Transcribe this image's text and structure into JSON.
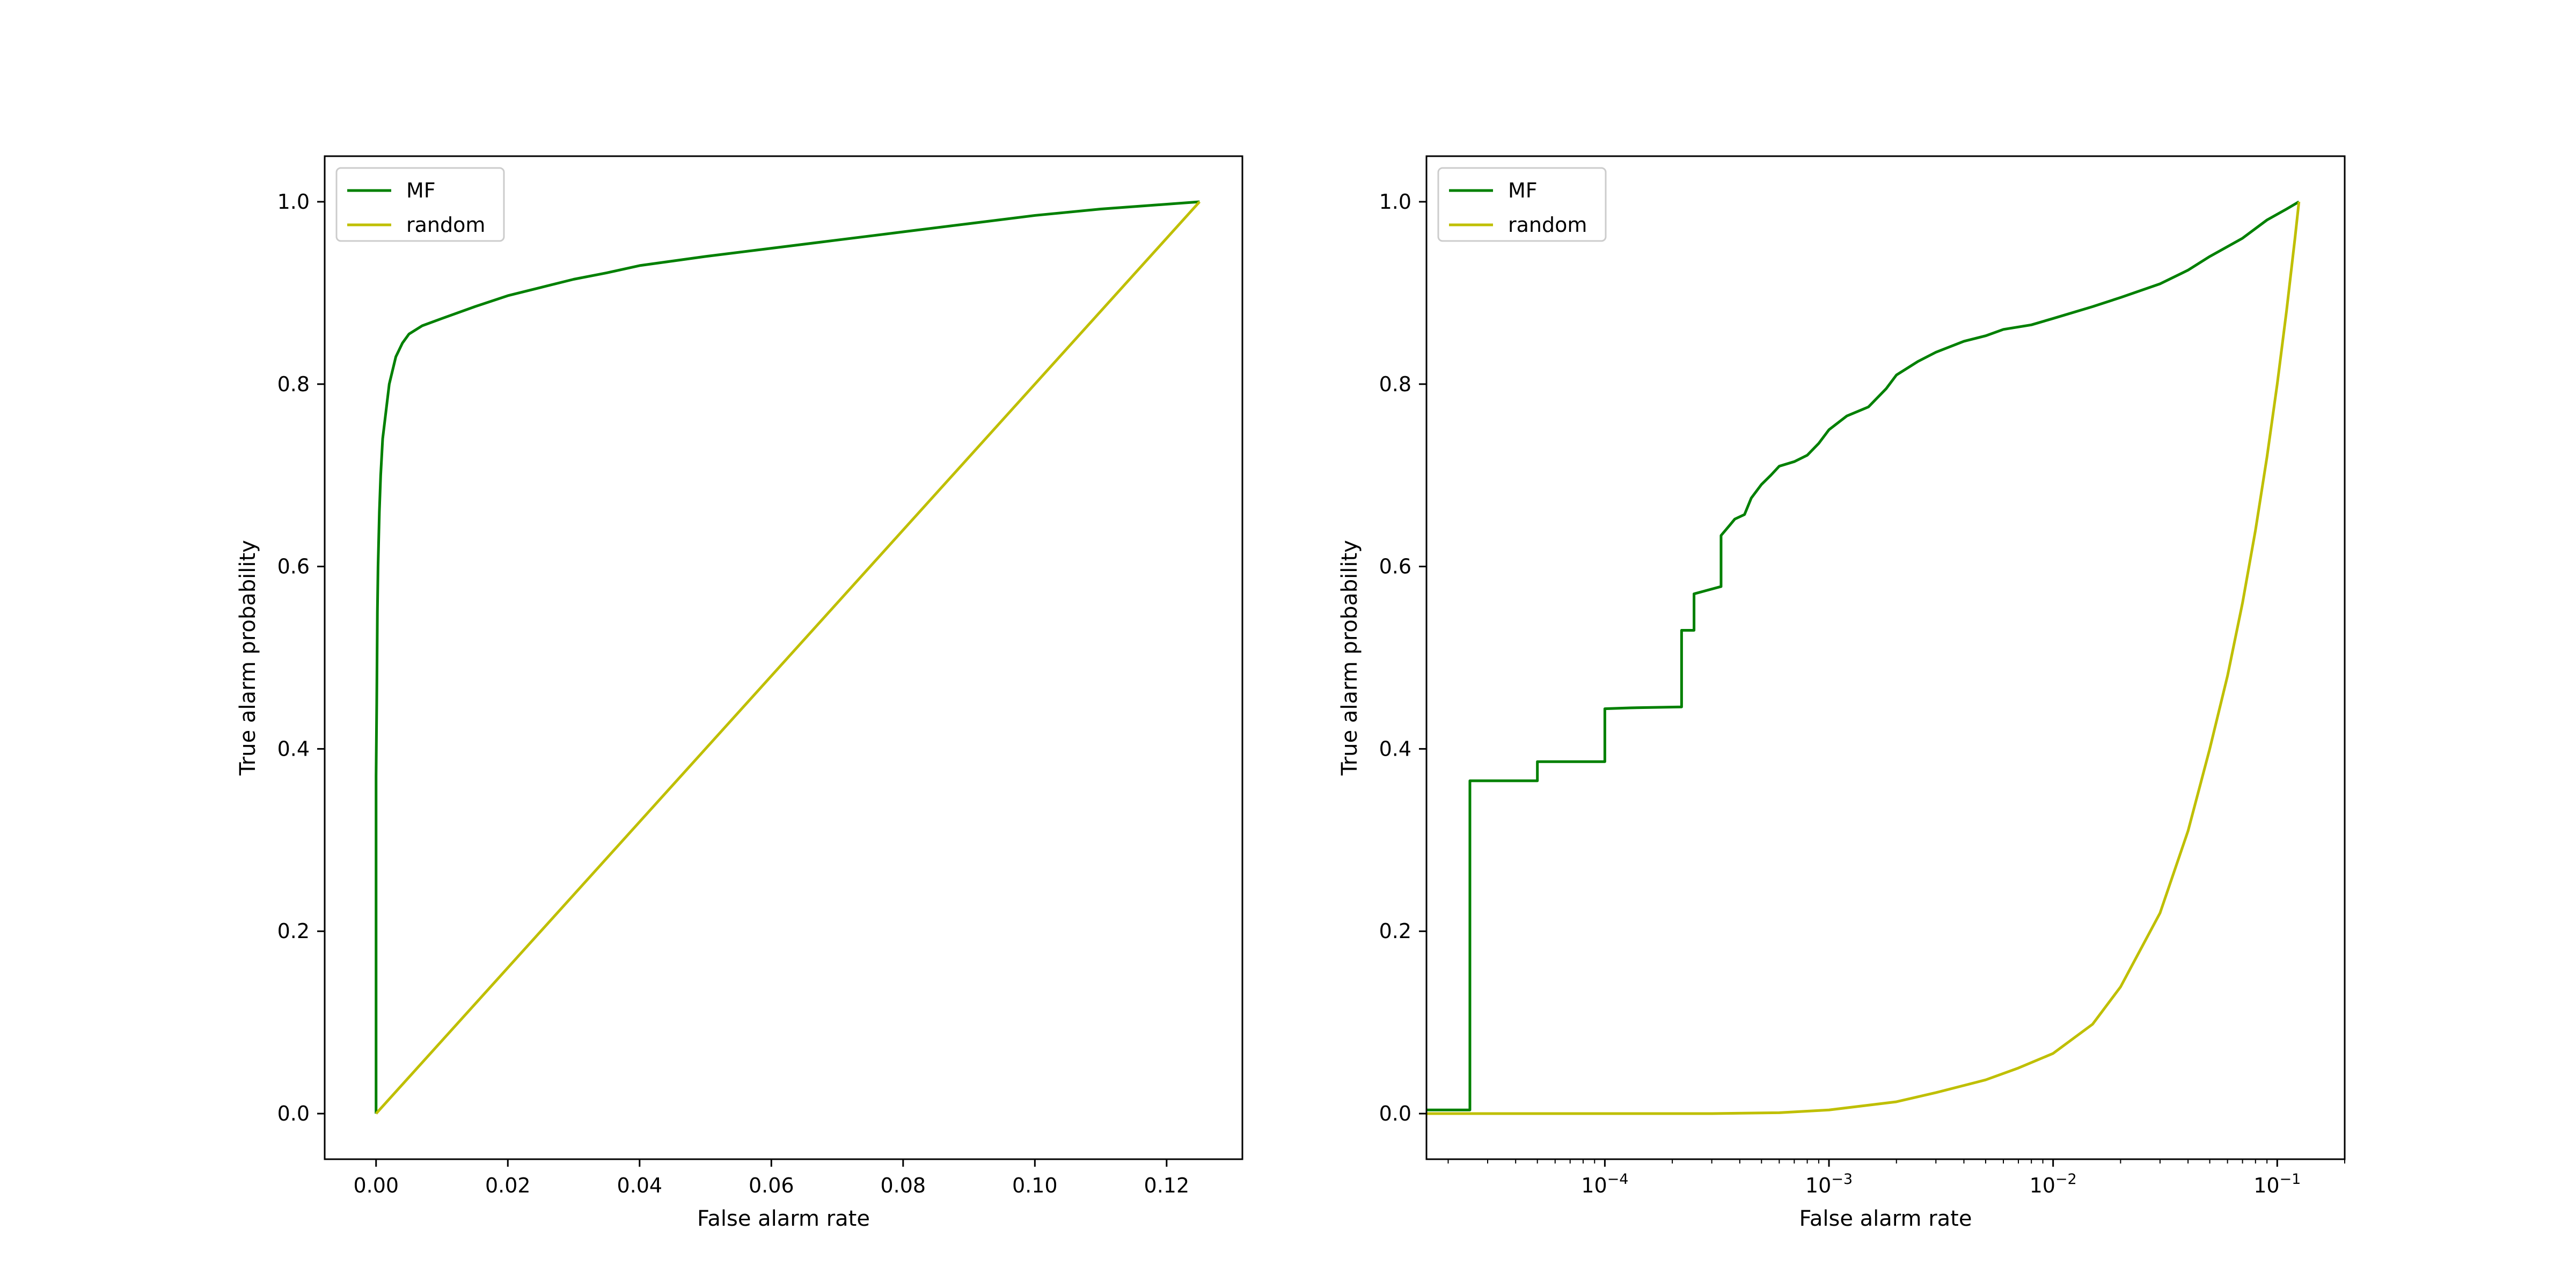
{
  "chart_data": [
    {
      "type": "line",
      "xlabel": "False alarm rate",
      "ylabel": "True alarm probability",
      "xscale": "linear",
      "xlim": [
        -0.0078,
        0.1315
      ],
      "ylim": [
        -0.05,
        1.05
      ],
      "x_ticks": [
        0.0,
        0.02,
        0.04,
        0.06,
        0.08,
        0.1,
        0.12
      ],
      "x_tick_labels": [
        "0.00",
        "0.02",
        "0.04",
        "0.06",
        "0.08",
        "0.10",
        "0.12"
      ],
      "y_ticks": [
        0.0,
        0.2,
        0.4,
        0.6,
        0.8,
        1.0
      ],
      "y_tick_labels": [
        "0.0",
        "0.2",
        "0.4",
        "0.6",
        "0.8",
        "1.0"
      ],
      "grid": false,
      "legend": "upper-left",
      "series": [
        {
          "name": "MF",
          "color": "#008000",
          "x": [
            0.0,
            0.0,
            0.0001,
            0.0002,
            0.0003,
            0.0005,
            0.0007,
            0.001,
            0.0015,
            0.002,
            0.003,
            0.004,
            0.005,
            0.007,
            0.01,
            0.015,
            0.02,
            0.025,
            0.03,
            0.035,
            0.04,
            0.05,
            0.06,
            0.07,
            0.08,
            0.09,
            0.1,
            0.11,
            0.125
          ],
          "y": [
            0.0,
            0.37,
            0.45,
            0.55,
            0.6,
            0.66,
            0.7,
            0.74,
            0.77,
            0.8,
            0.83,
            0.845,
            0.855,
            0.864,
            0.872,
            0.885,
            0.897,
            0.906,
            0.915,
            0.922,
            0.93,
            0.94,
            0.949,
            0.958,
            0.967,
            0.976,
            0.985,
            0.992,
            1.0
          ]
        },
        {
          "name": "random",
          "color": "#bfbf00",
          "x": [
            0.0,
            0.125
          ],
          "y": [
            0.0,
            1.0
          ]
        }
      ]
    },
    {
      "type": "line",
      "xlabel": "False alarm rate",
      "ylabel": "True alarm probability",
      "xscale": "log",
      "xlim": [
        1.6e-05,
        0.2
      ],
      "ylim": [
        -0.05,
        1.05
      ],
      "x_ticks": [
        0.0001,
        0.001,
        0.01,
        0.1
      ],
      "x_tick_labels": [
        {
          "base": "10",
          "exp": "−4"
        },
        {
          "base": "10",
          "exp": "−3"
        },
        {
          "base": "10",
          "exp": "−2"
        },
        {
          "base": "10",
          "exp": "−1"
        }
      ],
      "y_ticks": [
        0.0,
        0.2,
        0.4,
        0.6,
        0.8,
        1.0
      ],
      "y_tick_labels": [
        "0.0",
        "0.2",
        "0.4",
        "0.6",
        "0.8",
        "1.0"
      ],
      "grid": false,
      "legend": "upper-left",
      "series": [
        {
          "name": "MF",
          "color": "#008000",
          "x": [
            1.6e-05,
            2.5e-05,
            2.5e-05,
            5e-05,
            5e-05,
            0.0001,
            0.0001,
            0.00013,
            0.00022,
            0.00022,
            0.00025,
            0.00025,
            0.00033,
            0.00033,
            0.00036,
            0.00038,
            0.00042,
            0.00045,
            0.0005,
            0.00055,
            0.0006,
            0.0007,
            0.0008,
            0.0009,
            0.001,
            0.0012,
            0.0015,
            0.0018,
            0.002,
            0.0025,
            0.003,
            0.004,
            0.005,
            0.006,
            0.008,
            0.01,
            0.015,
            0.02,
            0.03,
            0.04,
            0.05,
            0.07,
            0.09,
            0.11,
            0.125
          ],
          "y": [
            0.004,
            0.004,
            0.365,
            0.365,
            0.386,
            0.386,
            0.444,
            0.445,
            0.446,
            0.53,
            0.53,
            0.57,
            0.578,
            0.634,
            0.645,
            0.652,
            0.657,
            0.675,
            0.69,
            0.7,
            0.71,
            0.715,
            0.722,
            0.735,
            0.75,
            0.765,
            0.775,
            0.795,
            0.81,
            0.825,
            0.835,
            0.847,
            0.853,
            0.86,
            0.865,
            0.872,
            0.885,
            0.895,
            0.91,
            0.925,
            0.94,
            0.96,
            0.98,
            0.992,
            1.0
          ]
        },
        {
          "name": "random",
          "color": "#bfbf00",
          "x": [
            1.6e-05,
            0.0001,
            0.0003,
            0.0006,
            0.001,
            0.002,
            0.003,
            0.005,
            0.007,
            0.01,
            0.015,
            0.02,
            0.03,
            0.04,
            0.05,
            0.06,
            0.07,
            0.08,
            0.09,
            0.1,
            0.11,
            0.12,
            0.125
          ],
          "y": [
            0.0,
            0.0,
            0.0,
            0.001,
            0.004,
            0.013,
            0.023,
            0.037,
            0.05,
            0.066,
            0.098,
            0.139,
            0.22,
            0.31,
            0.4,
            0.48,
            0.56,
            0.64,
            0.72,
            0.8,
            0.88,
            0.96,
            1.0
          ]
        }
      ]
    }
  ]
}
